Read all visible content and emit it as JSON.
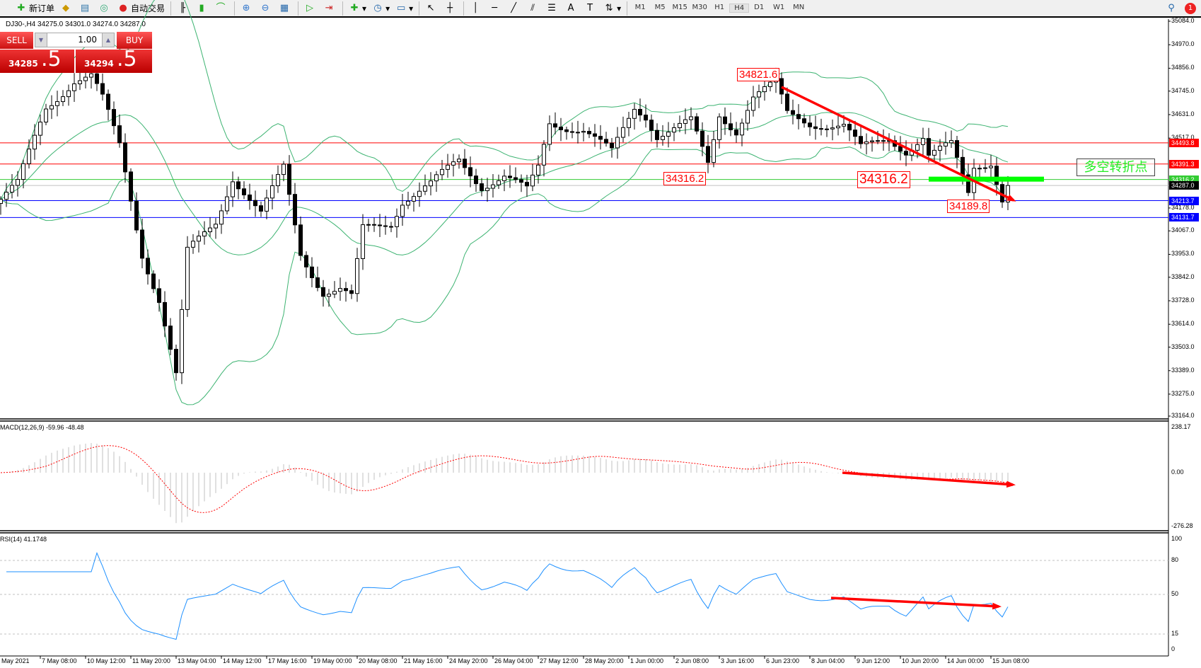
{
  "toolbar": {
    "new_order": "新订单",
    "auto_trading": "自动交易",
    "timeframes": [
      "M1",
      "M5",
      "M15",
      "M30",
      "H1",
      "H4",
      "D1",
      "W1",
      "MN"
    ],
    "active_timeframe": "H4",
    "notification_count": "1"
  },
  "chart": {
    "title": "DJ30-,H4  34275.0 34301.0 34274.0 34287.0",
    "current_price": 34287.0
  },
  "trade_panel": {
    "sell_label": "SELL",
    "buy_label": "BUY",
    "lot": "1.00",
    "sell_price_main": "34285",
    "sell_price_big": ".5",
    "buy_price_main": "34294",
    "buy_price_big": ".5"
  },
  "price_axis": [
    "35084.0",
    "34970.0",
    "34856.0",
    "34745.0",
    "34631.0",
    "34517.0",
    "34178.0",
    "34067.0",
    "33953.0",
    "33842.0",
    "33728.0",
    "33614.0",
    "33503.0",
    "33389.0",
    "33275.0",
    "33164.0"
  ],
  "levels": [
    {
      "price": "34493.8",
      "color": "#ff0000"
    },
    {
      "price": "34391.3",
      "color": "#ff0000"
    },
    {
      "price": "34316.2",
      "color": "#33cc33"
    },
    {
      "price": "34287.0",
      "color": "#000000"
    },
    {
      "price": "34213.7",
      "color": "#0000ff"
    },
    {
      "price": "34131.7",
      "color": "#0000ff"
    }
  ],
  "annotations": {
    "high": "34821.6",
    "support_left": "34316.2",
    "support_right": "34316.2",
    "low": "34189.8",
    "pivot_text": "多空转折点"
  },
  "price_path": [
    [
      0,
      34220
    ],
    [
      3,
      34290
    ],
    [
      8,
      34665
    ],
    [
      13,
      34800
    ],
    [
      16,
      34816
    ],
    [
      18,
      34703
    ],
    [
      21,
      34480
    ],
    [
      25,
      33960
    ],
    [
      28,
      33738
    ],
    [
      31,
      33364
    ],
    [
      33,
      33960
    ],
    [
      38,
      34110
    ],
    [
      41,
      34333
    ],
    [
      46,
      34146
    ],
    [
      50,
      34370
    ],
    [
      53,
      33960
    ],
    [
      57,
      33773
    ],
    [
      60,
      33780
    ],
    [
      62,
      33738
    ],
    [
      64,
      34071
    ],
    [
      69,
      34110
    ],
    [
      71,
      34219
    ],
    [
      76,
      34290
    ],
    [
      81,
      34408
    ],
    [
      85,
      34290
    ],
    [
      89,
      34333
    ],
    [
      93,
      34257
    ],
    [
      95,
      34370
    ],
    [
      97,
      34593
    ],
    [
      103,
      34560
    ],
    [
      108,
      34442
    ],
    [
      112,
      34665
    ],
    [
      114,
      34630
    ],
    [
      116,
      34535
    ],
    [
      122,
      34593
    ],
    [
      125,
      34386
    ],
    [
      127,
      34630
    ],
    [
      130,
      34560
    ],
    [
      133,
      34723
    ],
    [
      137,
      34778
    ],
    [
      139,
      34630
    ],
    [
      143,
      34593
    ],
    [
      149,
      34577
    ],
    [
      152,
      34462
    ],
    [
      157,
      34518
    ],
    [
      160,
      34462
    ],
    [
      163,
      34518
    ],
    [
      164,
      34425
    ],
    [
      168,
      34480
    ],
    [
      171,
      34257
    ],
    [
      172,
      34386
    ],
    [
      175,
      34408
    ],
    [
      177,
      34219
    ],
    [
      178,
      34287
    ]
  ],
  "macd": {
    "label": "MACD(12,26,9) -59.96 -48.48",
    "axis": [
      "238.17",
      "0.00",
      "-276.28"
    ]
  },
  "rsi": {
    "label": "RSI(14) 41.1748",
    "axis": [
      "100",
      "80",
      "50",
      "15",
      "0"
    ]
  },
  "time_axis": [
    "May 2021",
    "7 May 08:00",
    "10 May 12:00",
    "11 May 20:00",
    "13 May 04:00",
    "14 May 12:00",
    "17 May 16:00",
    "19 May 00:00",
    "20 May 08:00",
    "21 May 16:00",
    "24 May 20:00",
    "26 May 04:00",
    "27 May 12:00",
    "28 May 20:00",
    "1 Jun 00:00",
    "2 Jun 08:00",
    "3 Jun 16:00",
    "6 Jun 23:00",
    "8 Jun 04:00",
    "9 Jun 12:00",
    "10 Jun 20:00",
    "14 Jun 00:00",
    "15 Jun 08:00"
  ],
  "colors": {
    "bull": "#ffffff",
    "bear": "#000000",
    "bands": "#3cb371",
    "macd_signal": "#ff0000",
    "macd_hist": "#c0c0c0",
    "rsi": "#1e90ff",
    "trend_arrow": "#ff0000",
    "pivot_zone": "#00ff00"
  }
}
